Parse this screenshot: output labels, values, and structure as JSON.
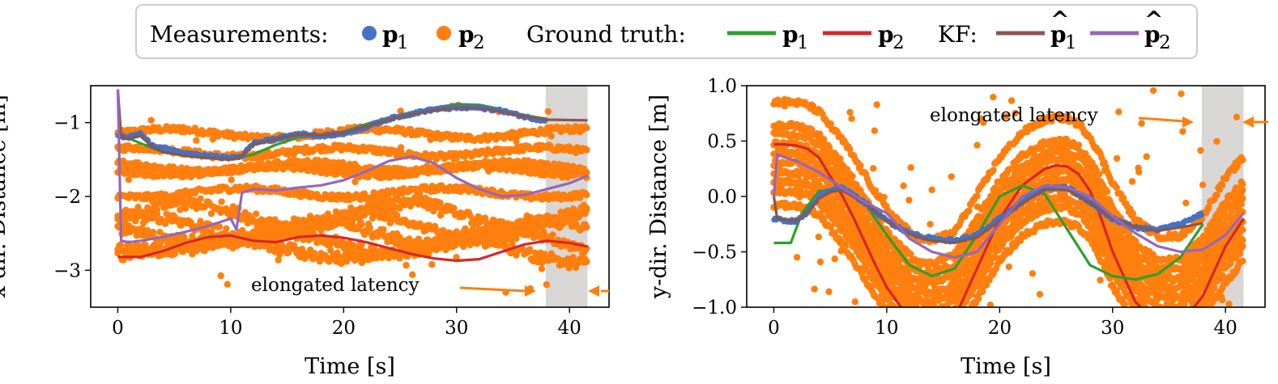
{
  "legend": {
    "measurements_label": "Measurements:",
    "ground_truth_label": "Ground truth:",
    "kf_label": "KF:",
    "p1": "p",
    "p2": "p",
    "sub1": "1",
    "sub2": "2",
    "hat": "^"
  },
  "colors": {
    "meas_p1": "#4472c4",
    "meas_p2": "#ff7f0e",
    "gt_p1": "#2ca02c",
    "gt_p2": "#d62728",
    "kf_p1": "#8c564b",
    "kf_p2": "#9467bd",
    "latency_band": "#d9d6d6"
  },
  "chart_data": [
    {
      "type": "line",
      "title": "",
      "xlabel": "Time [s]",
      "ylabel": "x-dir. Distance [m]",
      "xlim": [
        -2.4,
        43.5
      ],
      "ylim": [
        -3.5,
        -0.5
      ],
      "xticks": [
        0,
        10,
        20,
        30,
        40
      ],
      "yticks": [
        -1,
        -2,
        -3
      ],
      "xtick_labels": [
        "0",
        "10",
        "20",
        "30",
        "40"
      ],
      "ytick_labels": [
        "−1",
        "−2",
        "−3"
      ],
      "latency_band": [
        37.9,
        41.6
      ],
      "annotation": "elongated latency",
      "series": [
        {
          "name": "Ground truth p1",
          "x": [
            0,
            2,
            4,
            6,
            8,
            10,
            12,
            14,
            16,
            18,
            20,
            22,
            24,
            26,
            28,
            30,
            32,
            34,
            36,
            38
          ],
          "values": [
            -1.15,
            -1.28,
            -1.4,
            -1.45,
            -1.48,
            -1.5,
            -1.43,
            -1.3,
            -1.2,
            -1.18,
            -1.12,
            -1.02,
            -0.93,
            -0.86,
            -0.8,
            -0.75,
            -0.76,
            -0.82,
            -0.9,
            -0.95
          ]
        },
        {
          "name": "Ground truth p2",
          "x": [
            0,
            2,
            4,
            6,
            8,
            10,
            12,
            14,
            16,
            18,
            20,
            22,
            24,
            26,
            28,
            30,
            32,
            34,
            36,
            38,
            40,
            41.6
          ],
          "values": [
            -2.82,
            -2.82,
            -2.74,
            -2.63,
            -2.55,
            -2.53,
            -2.6,
            -2.62,
            -2.55,
            -2.53,
            -2.56,
            -2.62,
            -2.7,
            -2.78,
            -2.84,
            -2.87,
            -2.85,
            -2.75,
            -2.65,
            -2.6,
            -2.63,
            -2.68
          ]
        },
        {
          "name": "Measurements p1",
          "x": [
            0,
            1,
            2,
            3,
            4,
            6,
            8,
            10,
            11,
            12,
            14,
            16,
            18,
            20,
            22,
            24,
            26,
            28,
            30,
            32,
            34,
            36,
            38
          ],
          "values": [
            -1.18,
            -1.2,
            -1.15,
            -1.3,
            -1.35,
            -1.42,
            -1.45,
            -1.48,
            -1.45,
            -1.28,
            -1.22,
            -1.15,
            -1.18,
            -1.15,
            -1.06,
            -0.95,
            -0.88,
            -0.82,
            -0.8,
            -0.8,
            -0.84,
            -0.92,
            -0.98
          ]
        },
        {
          "name": "KF p1",
          "x": [
            0,
            0.3,
            1,
            2,
            3,
            4,
            6,
            8,
            10,
            11,
            12,
            14,
            16,
            18,
            20,
            22,
            24,
            26,
            28,
            30,
            32,
            34,
            36,
            38,
            41.6
          ],
          "values": [
            -0.55,
            -1.2,
            -1.22,
            -1.18,
            -1.32,
            -1.4,
            -1.45,
            -1.48,
            -1.5,
            -1.45,
            -1.3,
            -1.22,
            -1.16,
            -1.17,
            -1.14,
            -1.05,
            -0.96,
            -0.89,
            -0.83,
            -0.8,
            -0.8,
            -0.85,
            -0.92,
            -0.96,
            -0.97
          ]
        },
        {
          "name": "KF p2",
          "x": [
            0,
            0.3,
            1,
            2,
            4,
            6,
            8,
            10,
            10.5,
            11,
            12,
            14,
            16,
            18,
            20,
            22,
            24,
            26,
            28,
            30,
            32,
            34,
            36,
            38,
            40,
            41.6
          ],
          "values": [
            -0.55,
            -2.6,
            -2.62,
            -2.6,
            -2.55,
            -2.48,
            -2.4,
            -2.3,
            -2.45,
            -1.95,
            -1.9,
            -1.92,
            -1.88,
            -1.85,
            -1.78,
            -1.66,
            -1.52,
            -1.46,
            -1.55,
            -1.75,
            -1.9,
            -2.0,
            -1.98,
            -1.9,
            -1.82,
            -1.72
          ]
        },
        {
          "name": "Measurements p2",
          "style": "dense scatter bands",
          "x_range": [
            0,
            41.6
          ],
          "band_levels": [
            -1.15,
            -1.4,
            -1.6,
            -1.65,
            -1.95,
            -2.25,
            -2.4,
            -2.5,
            -2.62,
            -2.72
          ]
        }
      ]
    },
    {
      "type": "line",
      "title": "",
      "xlabel": "Time [s]",
      "ylabel": "y-dir. Distance [m]",
      "xlim": [
        -2.4,
        43.5
      ],
      "ylim": [
        -1.0,
        1.0
      ],
      "xticks": [
        0,
        10,
        20,
        30,
        40
      ],
      "yticks": [
        1.0,
        0.5,
        0.0,
        -0.5,
        -1.0
      ],
      "xtick_labels": [
        "0",
        "10",
        "20",
        "30",
        "40"
      ],
      "ytick_labels": [
        "1.0",
        "0.5",
        "0.0",
        "−0.5",
        "−1.0"
      ],
      "latency_band": [
        37.9,
        41.6
      ],
      "annotation": "elongated latency",
      "series": [
        {
          "name": "Ground truth p1",
          "x": [
            0,
            0.5,
            1.5,
            2.5,
            4,
            6,
            8,
            10,
            12,
            14,
            16,
            18,
            20,
            22,
            24,
            26,
            28,
            30,
            32,
            34,
            36,
            38
          ],
          "values": [
            -0.42,
            -0.42,
            -0.42,
            -0.15,
            0.05,
            0.06,
            -0.05,
            -0.35,
            -0.62,
            -0.72,
            -0.65,
            -0.35,
            0.0,
            0.1,
            0.02,
            -0.3,
            -0.62,
            -0.72,
            -0.75,
            -0.7,
            -0.55,
            -0.25
          ]
        },
        {
          "name": "Ground truth p2",
          "x": [
            0,
            1,
            2,
            3,
            4,
            5,
            6,
            7,
            8,
            9,
            10,
            11,
            12,
            13,
            14,
            16,
            18,
            20,
            22,
            24,
            25,
            26,
            27,
            28,
            29,
            30,
            32,
            34,
            36,
            38,
            40,
            41.6
          ],
          "values": [
            0.47,
            0.47,
            0.46,
            0.43,
            0.35,
            0.18,
            0.02,
            -0.18,
            -0.4,
            -0.62,
            -0.82,
            -0.96,
            -1.1,
            -1.2,
            -1.2,
            -1.1,
            -0.65,
            -0.2,
            0.1,
            0.25,
            0.28,
            0.27,
            0.2,
            0.05,
            -0.2,
            -0.5,
            -0.95,
            -1.15,
            -1.15,
            -0.9,
            -0.45,
            -0.2
          ]
        },
        {
          "name": "Measurements p1",
          "x": [
            0,
            1,
            2,
            3,
            4,
            5,
            6,
            8,
            10,
            12,
            14,
            16,
            18,
            20,
            22,
            24,
            26,
            28,
            30,
            32,
            34,
            36,
            38
          ],
          "values": [
            -0.2,
            -0.22,
            -0.22,
            -0.15,
            0.0,
            0.06,
            0.08,
            -0.05,
            -0.22,
            -0.33,
            -0.38,
            -0.4,
            -0.35,
            -0.2,
            -0.05,
            0.08,
            0.08,
            -0.05,
            -0.2,
            -0.28,
            -0.3,
            -0.25,
            -0.15
          ]
        },
        {
          "name": "KF p1",
          "x": [
            0,
            0.3,
            1,
            2,
            3,
            4,
            5,
            6,
            8,
            10,
            12,
            14,
            16,
            18,
            20,
            22,
            24,
            26,
            28,
            30,
            32,
            34,
            36,
            38
          ],
          "values": [
            0.0,
            -0.2,
            -0.21,
            -0.22,
            -0.14,
            -0.02,
            0.04,
            0.06,
            -0.06,
            -0.22,
            -0.34,
            -0.4,
            -0.42,
            -0.37,
            -0.22,
            -0.06,
            0.06,
            0.06,
            -0.06,
            -0.2,
            -0.27,
            -0.31,
            -0.28,
            -0.24
          ]
        },
        {
          "name": "KF p2",
          "x": [
            0,
            0.3,
            1,
            2,
            4,
            6,
            8,
            10,
            12,
            14,
            16,
            18,
            20,
            22,
            24,
            26,
            28,
            30,
            32,
            34,
            36,
            38,
            40,
            41.6
          ],
          "values": [
            0.0,
            0.38,
            0.35,
            0.32,
            0.22,
            0.08,
            -0.05,
            -0.15,
            -0.38,
            -0.5,
            -0.55,
            -0.5,
            -0.25,
            0.0,
            0.1,
            0.08,
            0.0,
            -0.18,
            -0.33,
            -0.45,
            -0.5,
            -0.48,
            -0.35,
            -0.15
          ]
        },
        {
          "name": "Measurements p2",
          "style": "dense scatter sinusoid bands",
          "x_range": [
            0,
            41.6
          ],
          "band_offsets": [
            0.65,
            0.4,
            0.3,
            0.2,
            0.1,
            0.0,
            -0.1,
            -0.2,
            -0.3,
            -0.45
          ]
        }
      ]
    }
  ]
}
